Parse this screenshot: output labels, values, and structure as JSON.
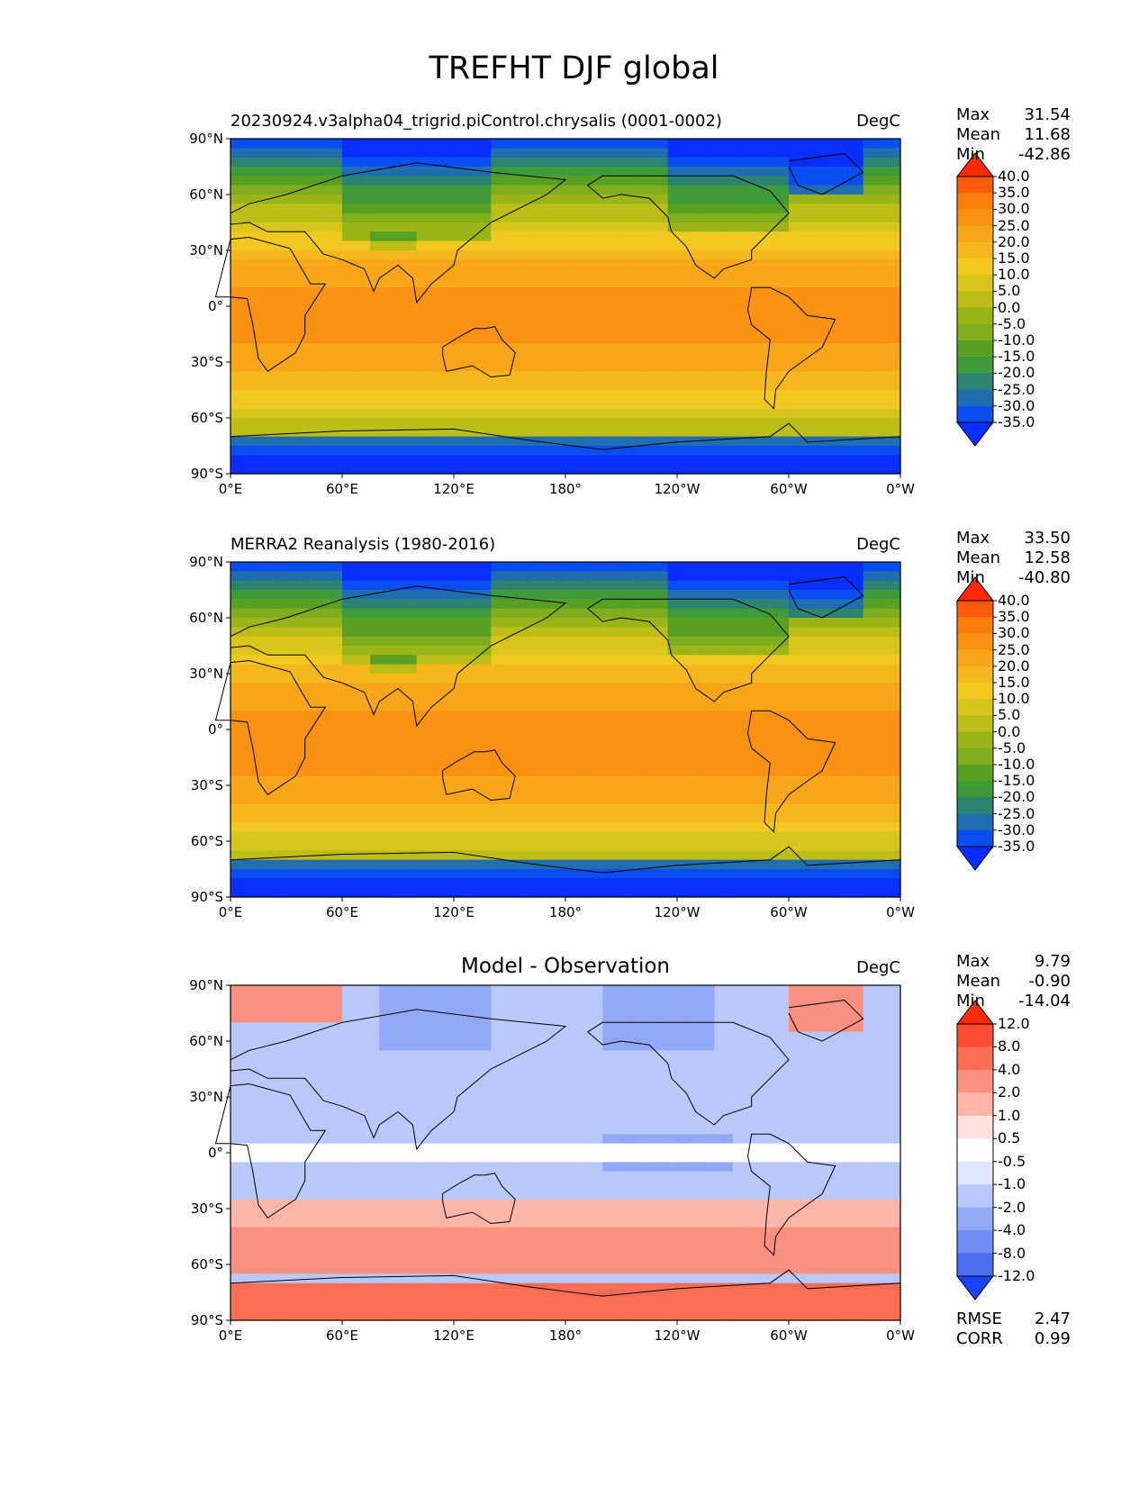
{
  "title": "TREFHT DJF global",
  "lat_ticks": [
    "90°N",
    "60°N",
    "30°N",
    "0°",
    "30°S",
    "60°S",
    "90°S"
  ],
  "lon_ticks": [
    "0°E",
    "60°E",
    "120°E",
    "180°",
    "120°W",
    "60°W",
    "0°W"
  ],
  "panels": [
    {
      "title": "20230924.v3alpha04_trigrid.piControl.chrysalis (0001-0002)",
      "units": "DegC",
      "stats": [
        {
          "label": "Max",
          "value": "31.54"
        },
        {
          "label": "Mean",
          "value": "11.68"
        },
        {
          "label": "Min",
          "value": "-42.86"
        }
      ],
      "colorbar": {
        "levels": [
          "40.0",
          "35.0",
          "30.0",
          "25.0",
          "20.0",
          "15.0",
          "10.0",
          "5.0",
          "0.0",
          "-5.0",
          "-10.0",
          "-15.0",
          "-20.0",
          "-25.0",
          "-30.0",
          "-35.0"
        ],
        "colors": [
          "#ff2a00",
          "#fd5a08",
          "#fb7d0c",
          "#f99212",
          "#f7a617",
          "#f5b71c",
          "#f1c91e",
          "#d9c61b",
          "#bdbd18",
          "#9cb516",
          "#7fad1d",
          "#57a021",
          "#3f9a3a",
          "#2a8470",
          "#1e6eb0",
          "#0a4df0",
          "#0a2eff"
        ]
      }
    },
    {
      "title": "MERRA2 Reanalysis (1980-2016)",
      "units": "DegC",
      "stats": [
        {
          "label": "Max",
          "value": "33.50"
        },
        {
          "label": "Mean",
          "value": "12.58"
        },
        {
          "label": "Min",
          "value": "-40.80"
        }
      ],
      "colorbar": {
        "levels": [
          "40.0",
          "35.0",
          "30.0",
          "25.0",
          "20.0",
          "15.0",
          "10.0",
          "5.0",
          "0.0",
          "-5.0",
          "-10.0",
          "-15.0",
          "-20.0",
          "-25.0",
          "-30.0",
          "-35.0"
        ],
        "colors": [
          "#ff2a00",
          "#fd5a08",
          "#fb7d0c",
          "#f99212",
          "#f7a617",
          "#f5b71c",
          "#f1c91e",
          "#d9c61b",
          "#bdbd18",
          "#9cb516",
          "#7fad1d",
          "#57a021",
          "#3f9a3a",
          "#2a8470",
          "#1e6eb0",
          "#0a4df0",
          "#0a2eff"
        ]
      }
    },
    {
      "title": "Model - Observation",
      "units": "DegC",
      "stats": [
        {
          "label": "Max",
          "value": "9.79"
        },
        {
          "label": "Mean",
          "value": "-0.90"
        },
        {
          "label": "Min",
          "value": "-14.04"
        }
      ],
      "extra_stats": [
        {
          "label": "RMSE",
          "value": "2.47"
        },
        {
          "label": "CORR",
          "value": "0.99"
        }
      ],
      "colorbar": {
        "levels": [
          "12.0",
          "8.0",
          "4.0",
          "2.0",
          "1.0",
          "0.5",
          "-0.5",
          "-1.0",
          "-2.0",
          "-4.0",
          "-8.0",
          "-12.0"
        ],
        "colors": [
          "#ff2a0a",
          "#ff4d33",
          "#fb6d55",
          "#fa9180",
          "#fbb6a9",
          "#fde0da",
          "#ffffff",
          "#dfe6fd",
          "#b9c8fb",
          "#92a9f7",
          "#6e8df5",
          "#4a6ff2",
          "#1a44ff"
        ]
      }
    }
  ]
}
